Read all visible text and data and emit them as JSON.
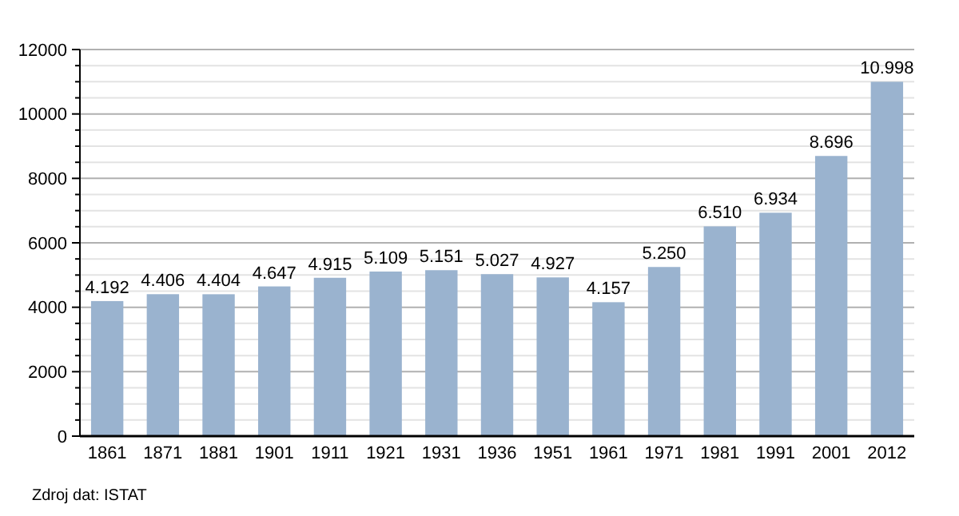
{
  "chart_data": {
    "type": "bar",
    "categories": [
      "1861",
      "1871",
      "1881",
      "1901",
      "1911",
      "1921",
      "1931",
      "1936",
      "1951",
      "1961",
      "1971",
      "1981",
      "1991",
      "2001",
      "2012"
    ],
    "values": [
      4192,
      4406,
      4404,
      4647,
      4915,
      5109,
      5151,
      5027,
      4927,
      4157,
      5250,
      6510,
      6934,
      8696,
      10998
    ],
    "value_labels": [
      "4.192",
      "4.406",
      "4.404",
      "4.647",
      "4.915",
      "5.109",
      "5.151",
      "5.027",
      "4.927",
      "4.157",
      "5.250",
      "6.510",
      "6.934",
      "8.696",
      "10.998"
    ],
    "color": "#9ab3cf",
    "ylim": [
      0,
      12000
    ],
    "yticks": [
      0,
      {
        "value": 500,
        "label": null
      },
      {
        "value": 1000,
        "label": null
      },
      {
        "value": 1500,
        "label": null
      },
      2000,
      {
        "value": 2500,
        "label": null
      },
      {
        "value": 3000,
        "label": null
      },
      {
        "value": 3500,
        "label": null
      },
      4000,
      {
        "value": 4500,
        "label": null
      },
      {
        "value": 5000,
        "label": null
      },
      {
        "value": 5500,
        "label": null
      },
      6000,
      {
        "value": 6500,
        "label": null
      },
      {
        "value": 7000,
        "label": null
      },
      {
        "value": 7500,
        "label": null
      },
      8000,
      {
        "value": 8500,
        "label": null
      },
      {
        "value": 9000,
        "label": null
      },
      {
        "value": 9500,
        "label": null
      },
      10000,
      {
        "value": 10500,
        "label": null
      },
      {
        "value": 11000,
        "label": null
      },
      {
        "value": 11500,
        "label": null
      },
      12000
    ],
    "grid": "y",
    "annotations": [
      "Zdroj dat: ISTAT"
    ]
  }
}
